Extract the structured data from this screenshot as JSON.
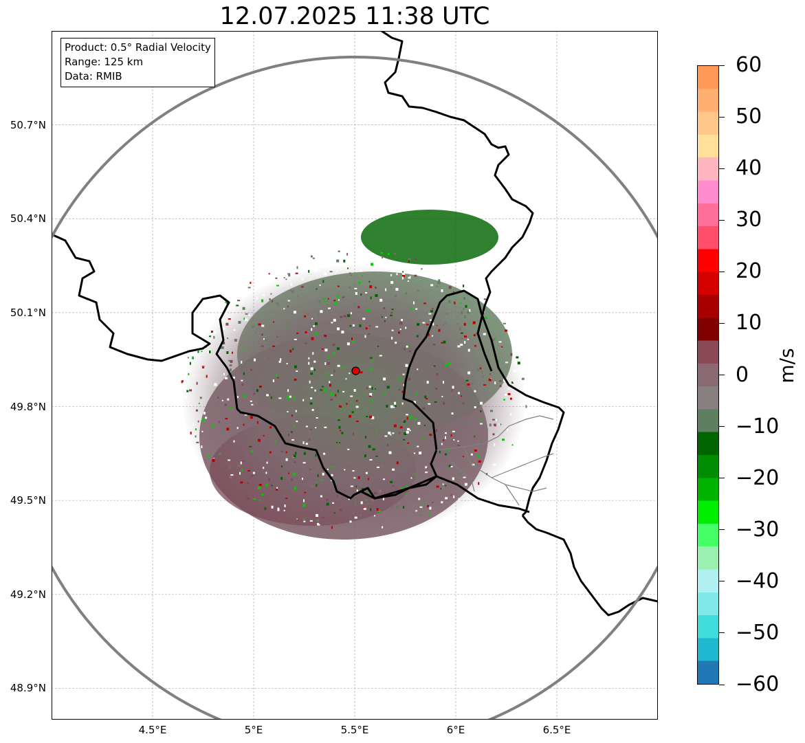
{
  "title": "12.07.2025 11:38 UTC",
  "info_box": {
    "product": "Product: 0.5° Radial Velocity",
    "range": "Range: 125 km",
    "data": "Data: RMIB"
  },
  "latitude_ticks": [
    {
      "value": 50.7,
      "label": "50.7°N"
    },
    {
      "value": 50.4,
      "label": "50.4°N"
    },
    {
      "value": 50.1,
      "label": "50.1°N"
    },
    {
      "value": 49.8,
      "label": "49.8°N"
    },
    {
      "value": 49.5,
      "label": "49.5°N"
    },
    {
      "value": 49.2,
      "label": "49.2°N"
    },
    {
      "value": 48.9,
      "label": "48.9°N"
    }
  ],
  "longitude_ticks": [
    {
      "value": 4.5,
      "label": "4.5°E"
    },
    {
      "value": 5.0,
      "label": "5°E"
    },
    {
      "value": 5.5,
      "label": "5.5°E"
    },
    {
      "value": 6.0,
      "label": "6°E"
    },
    {
      "value": 6.5,
      "label": "6.5°E"
    }
  ],
  "map_extent": {
    "lon_min": 4.0,
    "lon_max": 7.0,
    "lat_min": 48.8,
    "lat_max": 51.0
  },
  "radar_site": {
    "lon": 5.505,
    "lat": 49.914,
    "color": "#e00000"
  },
  "range_ring_color": "#808080",
  "colorbar": {
    "min": -60,
    "max": 60,
    "unit": "m/s",
    "ticks": [
      "60",
      "50",
      "40",
      "30",
      "20",
      "10",
      "0",
      "−10",
      "−20",
      "−30",
      "−40",
      "−50",
      "−60"
    ],
    "tick_values": [
      60,
      50,
      40,
      30,
      20,
      10,
      0,
      -10,
      -20,
      -30,
      -40,
      -50,
      -60
    ],
    "stops_top_to_bottom": [
      "#ff9955",
      "#ffb070",
      "#ffc88a",
      "#ffe09a",
      "#ffb6c1",
      "#ff8ccf",
      "#ff6f9a",
      "#ff4d6a",
      "#ff0000",
      "#d40000",
      "#a80000",
      "#800000",
      "#8a4a55",
      "#8a6a72",
      "#888080",
      "#5e8060",
      "#006400",
      "#008c00",
      "#00b400",
      "#00ee00",
      "#44ff66",
      "#99f0b0",
      "#b0f0f0",
      "#80e8e8",
      "#40dcdc",
      "#20b8d0",
      "#1f77b4"
    ]
  }
}
